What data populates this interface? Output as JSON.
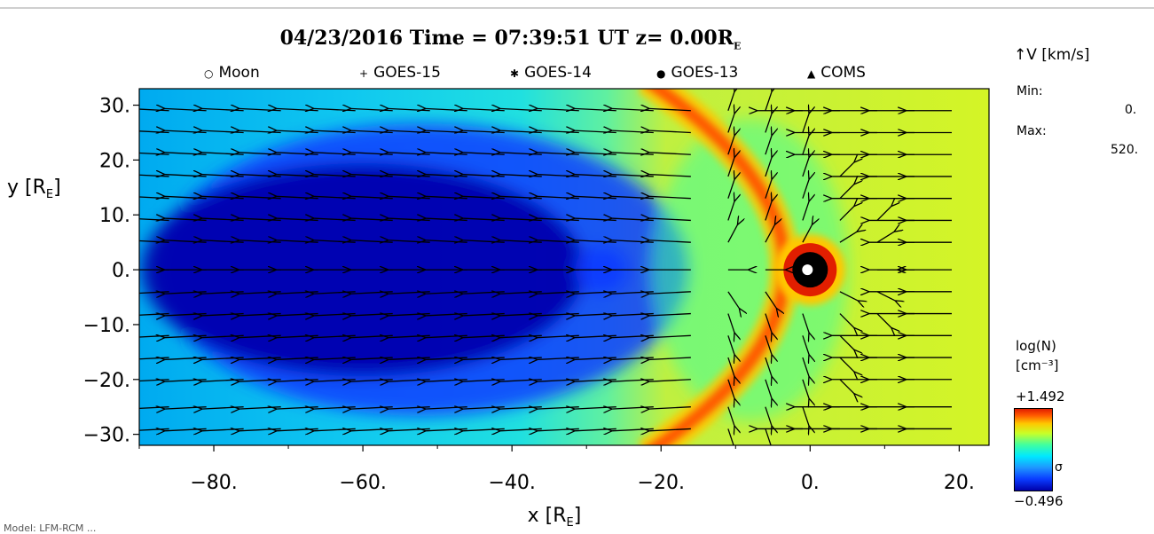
{
  "chart_data": {
    "type": "heatmap",
    "title": {
      "date": "04/23/2016",
      "time_label": "Time =",
      "time": "07:39:51",
      "ut": "UT",
      "z_label": "z=",
      "z_value": "0.00R",
      "z_sub": "E"
    },
    "legend": [
      {
        "marker": "○",
        "label": "Moon"
      },
      {
        "marker": "+",
        "label": "GOES-15"
      },
      {
        "marker": "✱",
        "label": "GOES-14"
      },
      {
        "marker": "●",
        "label": "GOES-13"
      },
      {
        "marker": "▲",
        "label": "COMS"
      }
    ],
    "xlabel": "x [R",
    "xlabel_sub": "E",
    "ylabel": "y [R",
    "ylabel_sub": "E",
    "xlim": [
      -90,
      24
    ],
    "ylim": [
      -32,
      33
    ],
    "x_ticks": [
      -80,
      -60,
      -40,
      -20,
      0,
      20
    ],
    "x_tick_labels": [
      "−80.",
      "−60.",
      "−40.",
      "−20.",
      "0.",
      "20."
    ],
    "y_ticks": [
      30,
      20,
      10,
      0,
      -10,
      -20,
      -30
    ],
    "y_tick_labels": [
      "30.",
      "20.",
      "10.",
      "0.",
      "−10.",
      "−20.",
      "−30."
    ],
    "velocity_vectors": {
      "label": "V [km/s]",
      "min_label": "Min:",
      "min_value": "0.",
      "max_label": "Max:",
      "max_value": "520.",
      "solar_wind_speed_km_s": 520,
      "grid_x": [
        -86,
        -81,
        -76,
        -71,
        -66,
        -61,
        -56,
        -51,
        -46,
        -41,
        -36,
        -31,
        -26,
        -21,
        -16,
        -11,
        -6,
        -1,
        4,
        9,
        14,
        19
      ],
      "grid_y": [
        29,
        25,
        21,
        17,
        13,
        9,
        5,
        0,
        -4,
        -8,
        -12,
        -16,
        -20,
        -25,
        -29
      ]
    },
    "density": {
      "quantity": "log(N)",
      "unit": "[cm⁻³]",
      "max_label": "+1.492",
      "min_label": "−0.496",
      "mid_label": "σ",
      "max": 1.492,
      "min": -0.496,
      "bow_shock_nose_x_RE": 11,
      "earth_position": [
        0,
        0
      ],
      "colormap": [
        "#0000aa",
        "#0a3cff",
        "#1e96ff",
        "#00e8ff",
        "#40ffa0",
        "#c8ff28",
        "#ffc800",
        "#ff5a00",
        "#e11e00"
      ],
      "background_color": "#d4f426"
    },
    "footer_text": "Model: LFM-RCM  ..."
  }
}
